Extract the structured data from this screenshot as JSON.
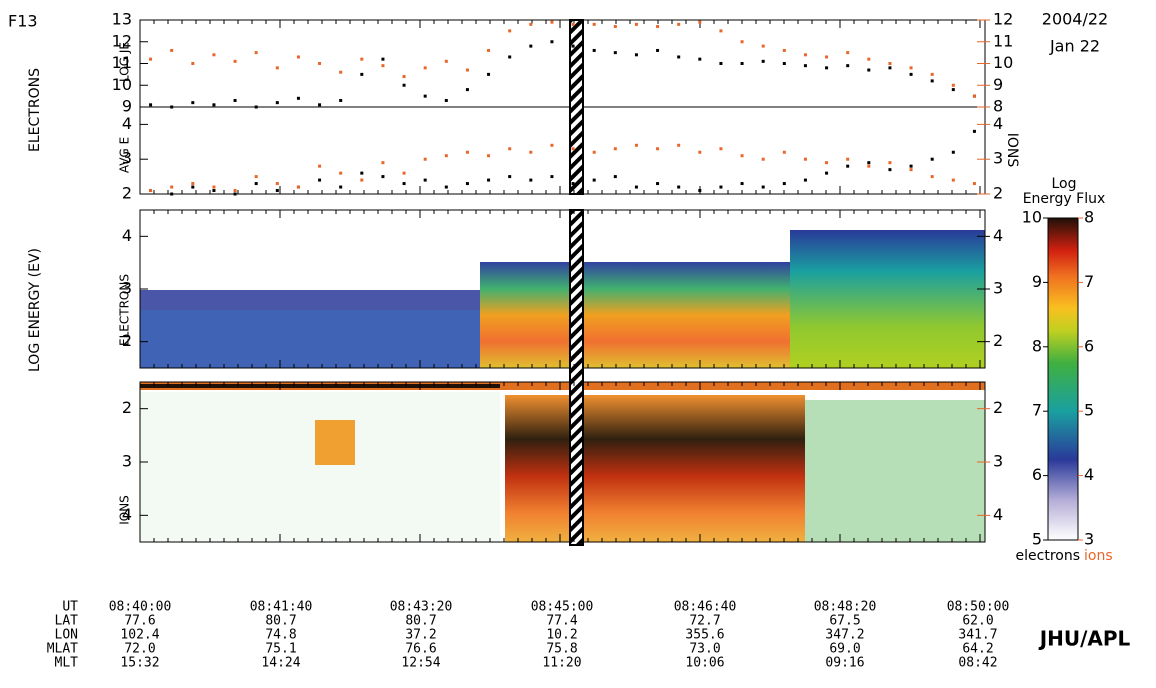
{
  "header": {
    "satellite": "F13",
    "date": "2004/22",
    "day": "Jan 22",
    "credit": "JHU/APL"
  },
  "side_labels": {
    "electrons": "ELECTRONS",
    "log_energy": "LOG ENERGY (EV)",
    "ions": "IONS"
  },
  "chart_data": [
    {
      "type": "scatter",
      "ylabel": "LOG JE",
      "ylim": [
        9,
        13
      ],
      "yticks": [
        9,
        10,
        11,
        12,
        13
      ],
      "y2lim": [
        8,
        12
      ],
      "y2ticks": [
        8,
        9,
        10,
        11,
        12
      ],
      "series": [
        {
          "color": "#000000",
          "values": [
            9.1,
            9.0,
            9.2,
            9.1,
            9.3,
            9.0,
            9.2,
            9.4,
            9.1,
            9.3,
            10.5,
            11.2,
            10.0,
            9.5,
            9.3,
            9.8,
            10.5,
            11.3,
            11.8,
            12.0,
            11.8,
            11.6,
            11.5,
            11.4,
            11.6,
            11.3,
            11.2,
            11.0,
            11.0,
            11.1,
            11.0,
            10.9,
            10.8,
            10.9,
            10.7,
            10.8,
            10.5,
            10.2,
            9.8,
            9.5
          ]
        },
        {
          "color": "#e8662a",
          "axis": "y2",
          "values": [
            10.2,
            10.6,
            10.0,
            10.4,
            10.1,
            10.5,
            9.8,
            10.3,
            10.0,
            9.6,
            10.2,
            9.9,
            9.4,
            9.8,
            10.1,
            9.7,
            10.6,
            11.5,
            11.8,
            11.9,
            11.8,
            11.8,
            11.7,
            11.8,
            11.7,
            11.8,
            11.9,
            11.5,
            11.0,
            10.8,
            10.6,
            10.4,
            10.3,
            10.5,
            10.2,
            10.0,
            9.8,
            9.5,
            9.0,
            8.5
          ]
        }
      ]
    },
    {
      "type": "scatter",
      "ylabel": "AVG E",
      "ylim": [
        2,
        4.5
      ],
      "yticks": [
        2,
        3,
        4
      ],
      "y2lim": [
        2,
        4.5
      ],
      "y2ticks": [
        2,
        3,
        4
      ],
      "y2label": "IONS",
      "series": [
        {
          "color": "#000000",
          "values": [
            2.1,
            2.0,
            2.2,
            2.1,
            2.0,
            2.3,
            2.1,
            2.2,
            2.4,
            2.2,
            2.6,
            2.5,
            2.3,
            2.4,
            2.2,
            2.3,
            2.4,
            2.5,
            2.4,
            2.5,
            2.3,
            2.4,
            2.5,
            2.2,
            2.3,
            2.2,
            2.1,
            2.2,
            2.3,
            2.2,
            2.3,
            2.4,
            2.6,
            2.8,
            2.9,
            2.7,
            2.8,
            3.0,
            3.2,
            3.8
          ]
        },
        {
          "color": "#e8662a",
          "axis": "y2",
          "values": [
            2.1,
            2.2,
            2.3,
            2.2,
            2.1,
            2.5,
            2.3,
            2.2,
            2.8,
            2.6,
            2.4,
            2.9,
            2.6,
            3.0,
            3.1,
            3.2,
            3.1,
            3.3,
            3.2,
            3.4,
            3.3,
            3.2,
            3.3,
            3.4,
            3.3,
            3.4,
            3.2,
            3.3,
            3.1,
            3.0,
            3.2,
            3.0,
            2.9,
            3.0,
            2.8,
            2.9,
            2.7,
            2.5,
            2.4,
            2.3
          ]
        }
      ]
    },
    {
      "type": "heatmap",
      "ylabel": "ELECTRONS",
      "ylim": [
        1.5,
        4.5
      ],
      "yticks": [
        2,
        3,
        4
      ],
      "y2ticks": [
        2,
        3,
        4
      ]
    },
    {
      "type": "heatmap",
      "ylabel": "IONS",
      "ylim": [
        4.5,
        1.5
      ],
      "yticks": [
        2,
        3,
        4
      ],
      "y2ticks": [
        2,
        3,
        4
      ]
    }
  ],
  "colorbar": {
    "title": "Log",
    "subtitle": "Energy Flux",
    "ylim": [
      5,
      10
    ],
    "yticks": [
      5,
      6,
      7,
      8,
      9,
      10
    ],
    "y2lim": [
      3,
      8
    ],
    "y2ticks": [
      3,
      4,
      5,
      6,
      7,
      8
    ],
    "left_label": "electrons",
    "right_label": "ions"
  },
  "table": {
    "row_labels": [
      "UT",
      "LAT",
      "LON",
      "MLAT",
      "MLT"
    ],
    "rows": [
      [
        "08:40:00",
        "08:41:40",
        "08:43:20",
        "08:45:00",
        "08:46:40",
        "08:48:20",
        "08:50:00"
      ],
      [
        "77.6",
        "80.7",
        "80.7",
        "77.4",
        "72.7",
        "67.5",
        "62.0"
      ],
      [
        "102.4",
        "74.8",
        "37.2",
        "10.2",
        "355.6",
        "347.2",
        "341.7"
      ],
      [
        "72.0",
        "75.1",
        "76.6",
        "75.8",
        "73.0",
        "69.0",
        "64.2"
      ],
      [
        "15:32",
        "14:24",
        "12:54",
        "11:20",
        "10:06",
        "09:16",
        "08:42"
      ]
    ]
  }
}
